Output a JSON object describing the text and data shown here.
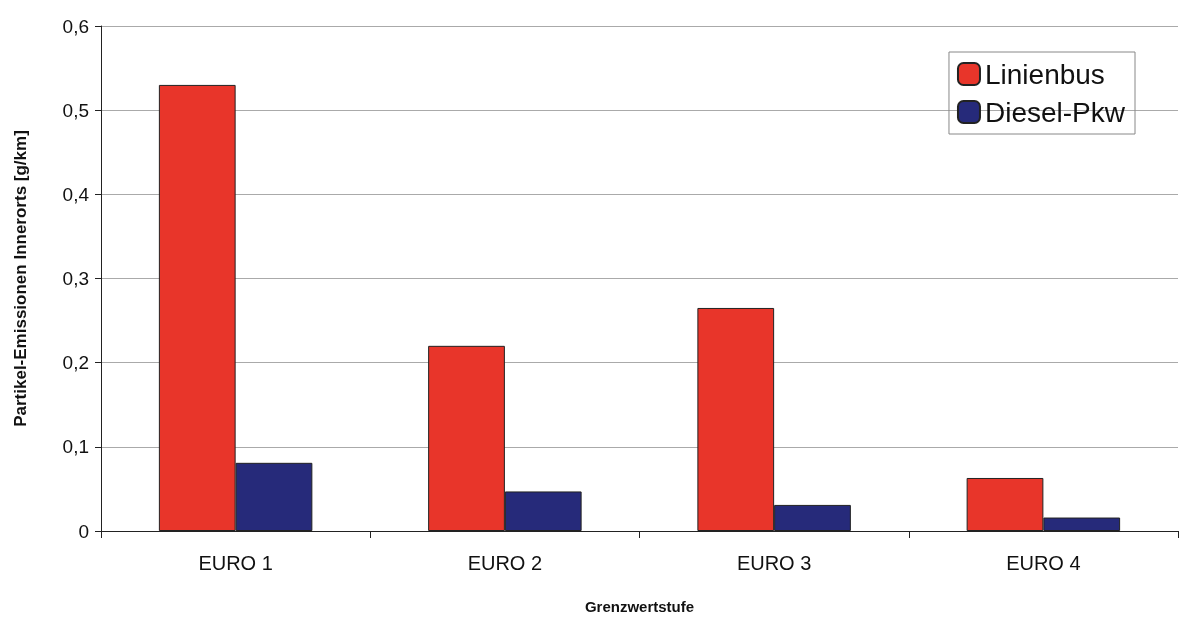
{
  "chart_data": {
    "type": "bar",
    "xlabel": "Grenzwertstufe",
    "ylabel": "Partikel-Emissionen Innerorts [g/km]",
    "categories": [
      "EURO 1",
      "EURO 2",
      "EURO 3",
      "EURO 4"
    ],
    "series": [
      {
        "name": "Linienbus",
        "color": "#e8352a",
        "values": [
          0.53,
          0.22,
          0.265,
          0.063
        ]
      },
      {
        "name": "Diesel-Pkw",
        "color": "#262a7a",
        "values": [
          0.081,
          0.047,
          0.031,
          0.016
        ]
      }
    ],
    "ylim": [
      0,
      0.6
    ],
    "yticks": [
      {
        "value": 0,
        "label": "0"
      },
      {
        "value": 0.1,
        "label": "0,1"
      },
      {
        "value": 0.2,
        "label": "0,2"
      },
      {
        "value": 0.3,
        "label": "0,3"
      },
      {
        "value": 0.4,
        "label": "0,4"
      },
      {
        "value": 0.5,
        "label": "0,5"
      },
      {
        "value": 0.6,
        "label": "0,6"
      }
    ],
    "grid": "y",
    "legend": "top right"
  }
}
